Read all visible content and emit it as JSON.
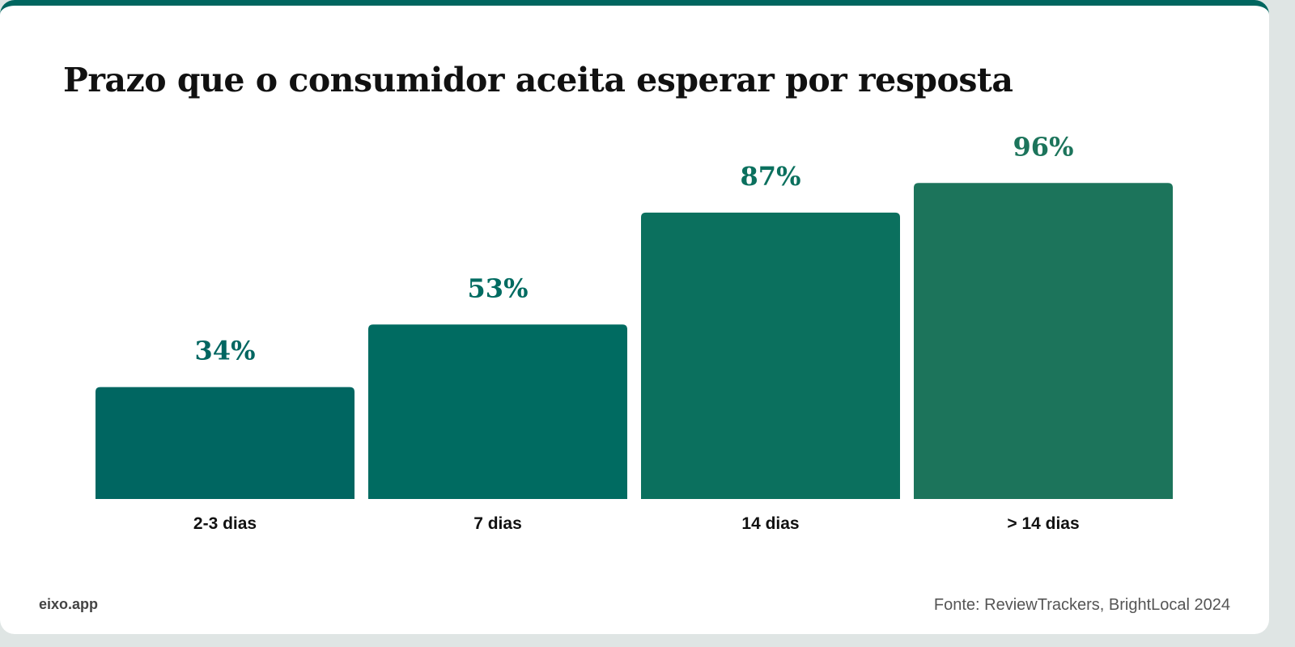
{
  "chart_data": {
    "type": "bar",
    "title": "Prazo que o consumidor aceita esperar por resposta",
    "categories": [
      "2-3 dias",
      "7 dias",
      "14 dias",
      "> 14 dias"
    ],
    "values": [
      34,
      53,
      87,
      96
    ],
    "value_labels": [
      "34%",
      "53%",
      "87%",
      "96%"
    ],
    "colors": [
      "#006661",
      "#006b61",
      "#0b705e",
      "#1c745b"
    ],
    "ylim": [
      0,
      100
    ],
    "grid": false,
    "legend": "none"
  },
  "footer": {
    "brand": "eixo.app",
    "source": "Fonte: ReviewTrackers, BrightLocal 2024"
  }
}
